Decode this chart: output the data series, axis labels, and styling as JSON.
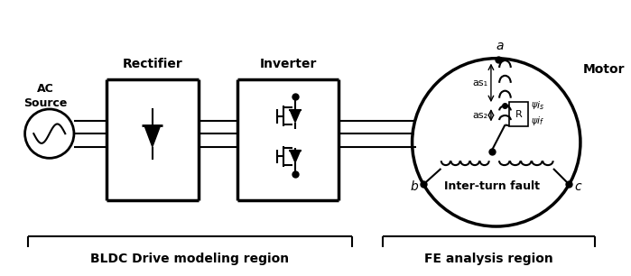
{
  "bg_color": "#ffffff",
  "line_color": "#000000",
  "ac_source_label": "AC\nSource",
  "rectifier_label": "Rectifier",
  "inverter_label": "Inverter",
  "motor_label": "Motor",
  "bldc_label": "BLDC Drive modeling region",
  "fe_label": "FE analysis region",
  "interturn_label": "Inter-turn fault",
  "as1_label": "as₁",
  "as2_label": "as₂",
  "R_label": "R",
  "a_label": "a",
  "b_label": "b",
  "c_label": "c",
  "is_label": "iₑ",
  "if_label": "if"
}
